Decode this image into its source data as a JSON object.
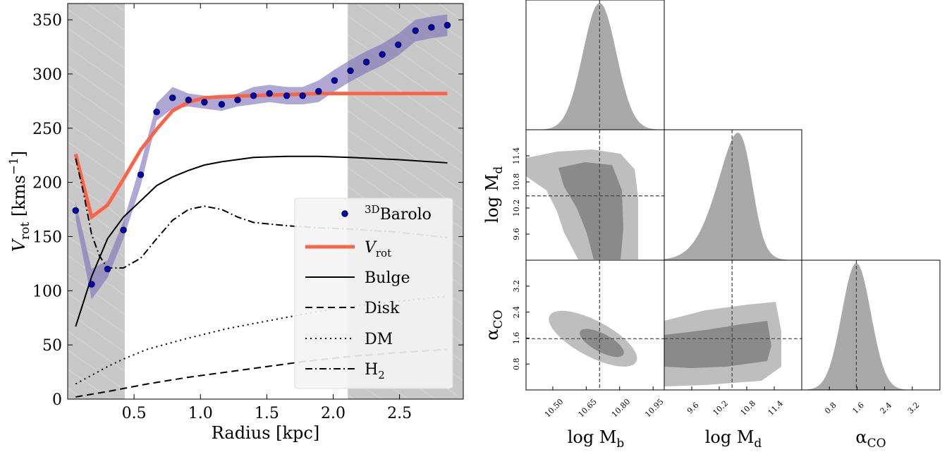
{
  "chart_data": [
    {
      "type": "line",
      "xlabel": "Radius [kpc]",
      "ylabel_main": "V",
      "ylabel_sub": "rot",
      "ylabel_unit": "[kms",
      "ylabel_exp": "−1",
      "ylabel_close": "]",
      "xlim": [
        0.0,
        2.98
      ],
      "ylim": [
        0,
        365
      ],
      "xticks": [
        0.5,
        1.0,
        1.5,
        2.0,
        2.5
      ],
      "xtick_labels": [
        "0.5",
        "1.0",
        "1.5",
        "2.0",
        "2.5"
      ],
      "yticks": [
        0,
        50,
        100,
        150,
        200,
        250,
        300,
        350
      ],
      "ytick_labels": [
        "0",
        "50",
        "100",
        "150",
        "200",
        "250",
        "300",
        "350"
      ],
      "shaded_regions": [
        [
          0.0,
          0.43
        ],
        [
          2.11,
          2.98
        ]
      ],
      "colors": {
        "vrot": "#FA6348",
        "barolo_fill": "#7A6EB8",
        "barolo_point": "#0000CD",
        "shade": "#C8C8C8"
      },
      "legend_position": "lower-right",
      "barolo": {
        "name_sup": "3D",
        "name": "Barolo",
        "x": [
          0.06,
          0.18,
          0.3,
          0.42,
          0.55,
          0.67,
          0.79,
          0.91,
          1.03,
          1.16,
          1.28,
          1.4,
          1.52,
          1.65,
          1.77,
          1.89,
          2.01,
          2.13,
          2.25,
          2.37,
          2.49,
          2.62,
          2.74,
          2.86
        ],
        "y": [
          174,
          106,
          120,
          156,
          207,
          265,
          278,
          276,
          274,
          272,
          276,
          280,
          282,
          280,
          280,
          284,
          294,
          303,
          311,
          318,
          327,
          340,
          343,
          345
        ],
        "band": [
          8,
          14,
          8,
          8,
          10,
          8,
          10,
          6,
          6,
          6,
          6,
          8,
          8,
          8,
          8,
          10,
          10,
          10,
          10,
          10,
          10,
          10,
          10,
          10
        ]
      },
      "series": [
        {
          "name_main": "V",
          "name_sub": "rot",
          "x": [
            0.06,
            0.18,
            0.3,
            0.42,
            0.55,
            0.67,
            0.79,
            0.91,
            1.03,
            1.16,
            1.4,
            1.65,
            1.89,
            2.13,
            2.49,
            2.86
          ],
          "y": [
            226,
            168,
            179,
            203,
            230,
            249,
            266,
            274,
            278,
            279,
            280,
            281,
            282,
            282,
            282,
            282
          ]
        },
        {
          "name": "Bulge",
          "x": [
            0.06,
            0.18,
            0.3,
            0.42,
            0.55,
            0.67,
            0.79,
            0.91,
            1.03,
            1.16,
            1.4,
            1.65,
            1.89,
            2.13,
            2.49,
            2.86
          ],
          "y": [
            67,
            113,
            148,
            168,
            183,
            197,
            205,
            211,
            216,
            219,
            223,
            224,
            224,
            223,
            221,
            218
          ]
        },
        {
          "name": "Disk",
          "x": [
            0.06,
            0.3,
            0.6,
            0.9,
            1.2,
            1.5,
            1.8,
            2.1,
            2.4,
            2.86
          ],
          "y": [
            2,
            7,
            14,
            20,
            25,
            30,
            35,
            39,
            42,
            46
          ]
        },
        {
          "name": "DM",
          "x": [
            0.06,
            0.18,
            0.3,
            0.42,
            0.6,
            0.9,
            1.2,
            1.5,
            1.8,
            2.1,
            2.4,
            2.86
          ],
          "y": [
            14,
            22,
            30,
            37,
            46,
            56,
            65,
            72,
            79,
            85,
            89,
            95
          ]
        },
        {
          "name_main": "H",
          "name_sub": "2",
          "x": [
            0.06,
            0.12,
            0.18,
            0.24,
            0.3,
            0.42,
            0.55,
            0.67,
            0.79,
            0.91,
            1.03,
            1.16,
            1.28,
            1.4,
            1.65,
            1.89,
            2.13,
            2.49,
            2.86
          ],
          "y": [
            222,
            190,
            152,
            132,
            121,
            121,
            130,
            148,
            165,
            175,
            178,
            175,
            168,
            163,
            160,
            158,
            157,
            154,
            149
          ]
        }
      ]
    },
    {
      "type": "corner",
      "parameters": [
        {
          "label_main": "log M",
          "label_sub": "b"
        },
        {
          "label_main": "log M",
          "label_sub": "d"
        },
        {
          "label_main": "α",
          "label_sub": "CO"
        }
      ],
      "truths": [
        10.71,
        10.48,
        1.58
      ],
      "ranges": [
        [
          10.38,
          11.0
        ],
        [
          9.0,
          12.0
        ],
        [
          0.0,
          4.0
        ]
      ],
      "ticks": [
        {
          "values": [
            10.5,
            10.65,
            10.8,
            10.95
          ],
          "labels": [
            "10.50",
            "10.65",
            "10.80",
            "10.95"
          ]
        },
        {
          "values": [
            9.6,
            10.2,
            10.8,
            11.4
          ],
          "labels": [
            "9.6",
            "10.2",
            "10.8",
            "11.4"
          ]
        },
        {
          "values": [
            0.8,
            1.6,
            2.4,
            3.2
          ],
          "labels": [
            "0.8",
            "1.6",
            "2.4",
            "3.2"
          ]
        }
      ],
      "colors": {
        "outer": "#BEBEBE",
        "inner": "#8A8A8A",
        "hist": "#A9A9A9"
      }
    }
  ]
}
